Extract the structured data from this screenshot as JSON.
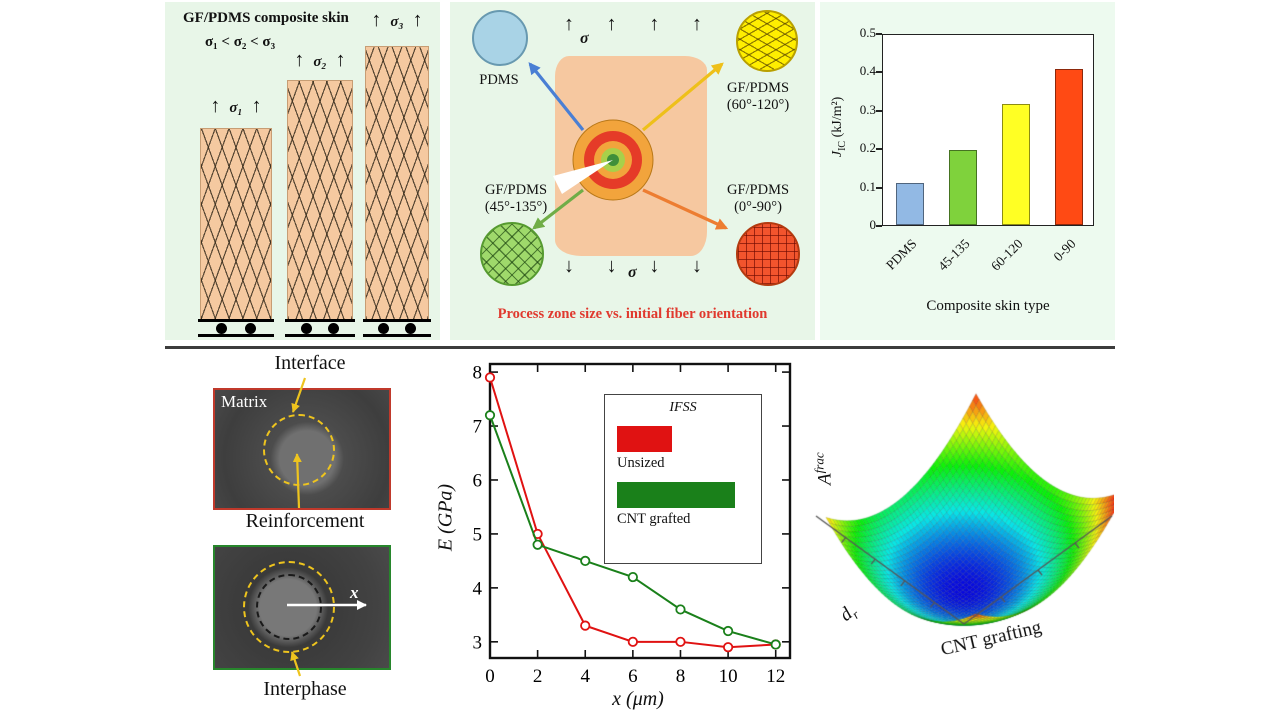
{
  "glyphs": {
    "arrow_up": "↑",
    "arrow_down": "↓"
  },
  "skin_panel": {
    "title": "GF/PDMS composite skin",
    "inequality": "σ₁ < σ₂ < σ₃",
    "stress_labels": [
      "σ₁",
      "σ₂",
      "σ₃"
    ]
  },
  "process_panel": {
    "sigma": "σ",
    "materials": {
      "pdms": {
        "name": "PDMS"
      },
      "deg60_120": {
        "name": "GF/PDMS",
        "range": "(60°-120°)"
      },
      "deg45_135": {
        "name": "GF/PDMS",
        "range": "(45°-135°)"
      },
      "deg0_90": {
        "name": "GF/PDMS",
        "range": "(0°-90°)"
      }
    },
    "caption": "Process zone size vs. initial fiber orientation"
  },
  "micrographs": {
    "interface": "Interface",
    "matrix": "Matrix",
    "reinforcement": "Reinforcement",
    "interphase": "Interphase",
    "x_axis": "x"
  },
  "surface_panel": {
    "z_label": {
      "main": "A",
      "sup": "frac"
    },
    "x_label": {
      "main": "d",
      "sub": "r"
    },
    "y_label": "CNT grafting"
  },
  "chart_data": [
    {
      "id": "jic-bar",
      "type": "bar",
      "categories": [
        "PDMS",
        "45-135",
        "60-120",
        "0-90"
      ],
      "values": [
        0.11,
        0.195,
        0.315,
        0.405
      ],
      "bar_colors": [
        "#92b9e4",
        "#7fd23c",
        "#ffff24",
        "#ff4a14"
      ],
      "ylabel": "J_IC (kJ/m²)",
      "ylabel_parts": {
        "main": "J",
        "sub": "IC",
        "unit": " (kJ/m²)"
      },
      "xlabel": "Composite skin type",
      "ylim": [
        0,
        0.5
      ],
      "yticks": [
        0,
        0.1,
        0.2,
        0.3,
        0.4,
        0.5
      ],
      "grid": false,
      "legend": "none"
    },
    {
      "id": "modulus-line",
      "type": "line",
      "x": [
        0,
        2,
        4,
        6,
        8,
        10,
        12
      ],
      "series": [
        {
          "name": "Unsized",
          "color": "#e01212",
          "values": [
            7.9,
            5.0,
            3.3,
            3.0,
            3.0,
            2.9,
            2.95
          ]
        },
        {
          "name": "CNT grafted",
          "color": "#1a801a",
          "values": [
            7.2,
            4.8,
            4.5,
            4.2,
            3.6,
            3.2,
            2.95
          ]
        }
      ],
      "xlabel": "x (μm)",
      "ylabel": "E (GPa)",
      "xlim": [
        0,
        12.6
      ],
      "ylim": [
        2.7,
        8.15
      ],
      "xticks": [
        0,
        2,
        4,
        6,
        8,
        10,
        12
      ],
      "yticks": [
        3,
        4,
        5,
        6,
        7,
        8
      ],
      "marker": "open-circle",
      "grid": false,
      "legend": {
        "title": "IFSS",
        "position": "upper-right-inset",
        "entries": [
          {
            "label": "Unsized",
            "color": "#e01212",
            "bar_len": 55
          },
          {
            "label": "CNT grafted",
            "color": "#1a801a",
            "bar_len": 118
          }
        ]
      }
    },
    {
      "id": "afrac-surface",
      "type": "heatmap",
      "subtype": "3d-surface",
      "zlabel": "A^frac",
      "xlabel": "d_r",
      "ylabel": "CNT grafting",
      "description": "Bowl-shaped 3D response surface with rainbow colormap: minimum (dark blue) near the center-front, rising through cyan, green, yellow and orange to red at the far rim"
    }
  ]
}
